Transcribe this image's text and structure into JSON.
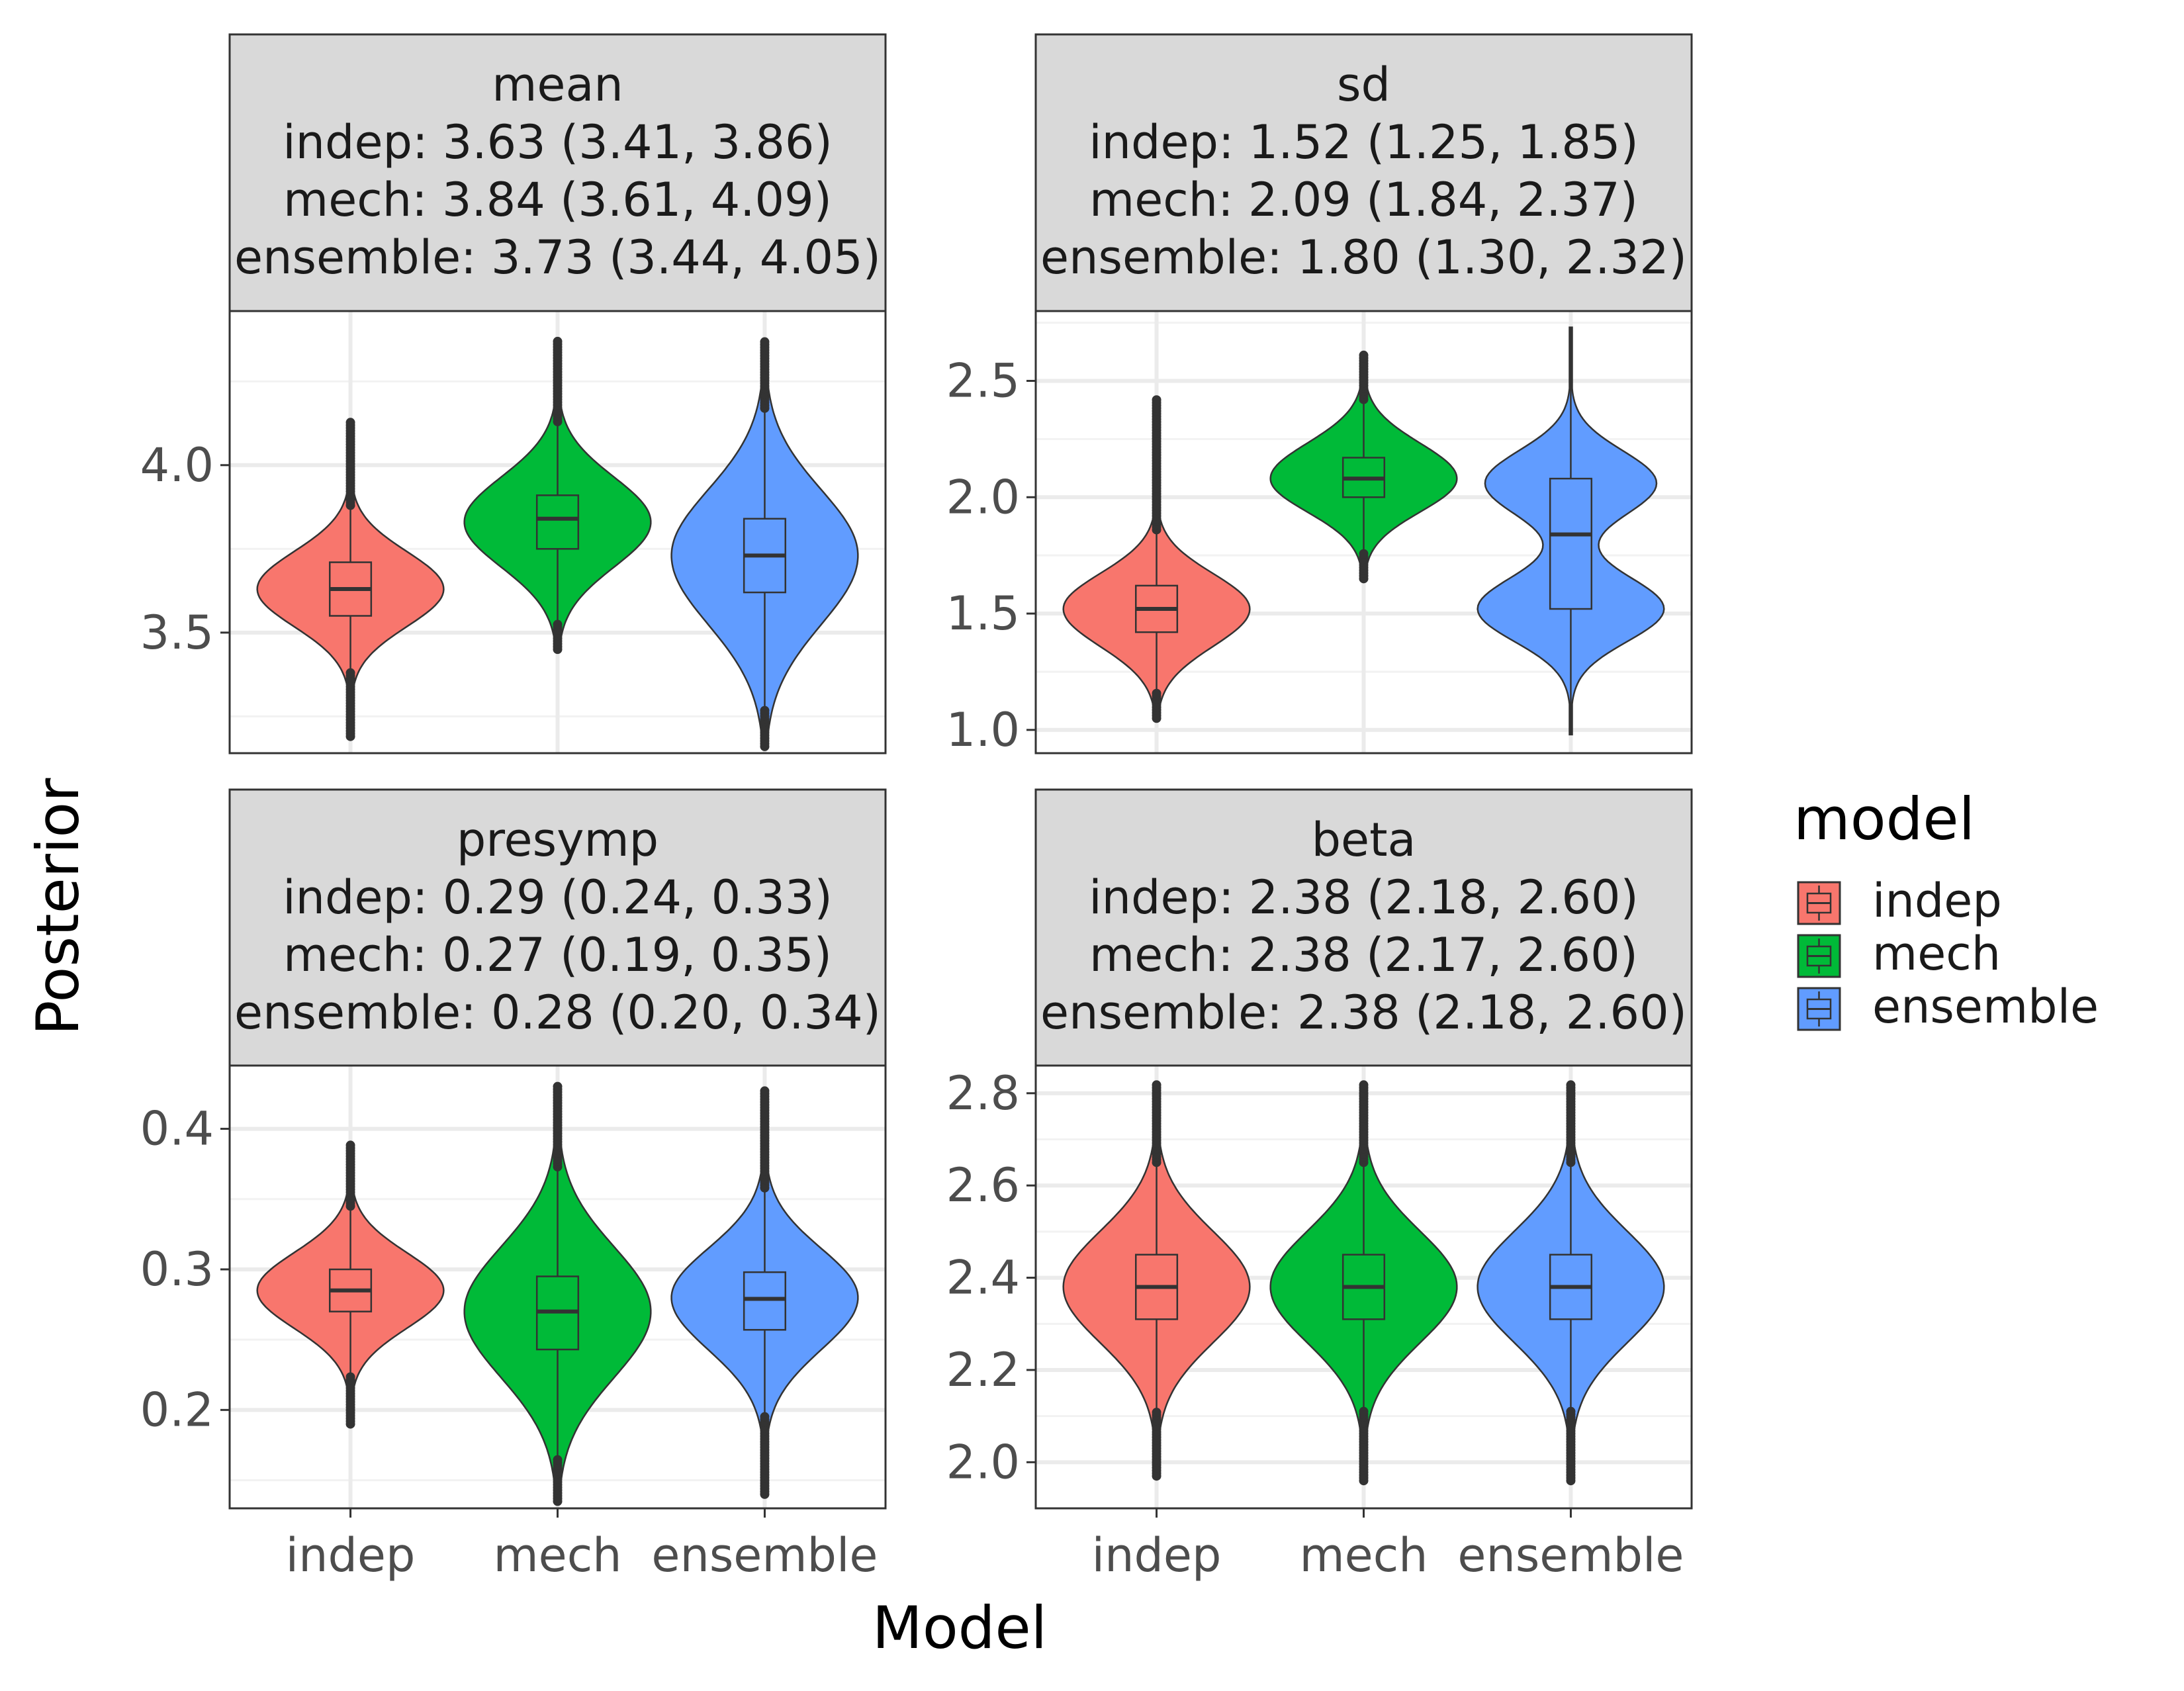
{
  "colors": {
    "indep": "#F8766D",
    "mech": "#00BA38",
    "ensemble": "#619CFF",
    "strip_fill": "#D9D9D9",
    "strip_border": "#333333",
    "panel_border": "#333333",
    "grid_major": "#EBEBEB",
    "grid_minor": "#F2F2F2",
    "axis_text": "#4D4D4D",
    "title_text": "#000000",
    "strip_text": "#1A1A1A"
  },
  "chart_data": {
    "type": "violin",
    "xlabel": "Model",
    "ylabel": "Posterior",
    "categories": [
      "indep",
      "mech",
      "ensemble"
    ],
    "legend": {
      "title": "model",
      "position": "right",
      "entries": [
        {
          "key": "indep",
          "label": "indep"
        },
        {
          "key": "mech",
          "label": "mech"
        },
        {
          "key": "ensemble",
          "label": "ensemble"
        }
      ]
    },
    "grid": true,
    "panels": [
      {
        "id": "mean",
        "strip": [
          "mean",
          "indep: 3.63 (3.41, 3.86)",
          "mech: 3.84 (3.61, 4.09)",
          "ensemble: 3.73 (3.44, 4.05)"
        ],
        "ylim": [
          3.14,
          4.46
        ],
        "yticks": [
          3.5,
          4.0
        ],
        "ytick_labels": [
          "3.5",
          "4.0"
        ],
        "minor_ticks": [
          3.25,
          3.75,
          4.25
        ],
        "series": [
          {
            "name": "indep",
            "median": 3.63,
            "q1": 3.55,
            "q3": 3.71,
            "whisker_low": 3.38,
            "whisker_high": 3.88,
            "min": 3.19,
            "max": 4.13,
            "shape": "unimodal",
            "max_half_width": 0.45,
            "mode": 3.63
          },
          {
            "name": "mech",
            "median": 3.84,
            "q1": 3.75,
            "q3": 3.91,
            "whisker_low": 3.53,
            "whisker_high": 4.13,
            "min": 3.45,
            "max": 4.37,
            "shape": "unimodal",
            "max_half_width": 0.45,
            "mode": 3.83
          },
          {
            "name": "ensemble",
            "median": 3.73,
            "q1": 3.62,
            "q3": 3.84,
            "whisker_low": 3.27,
            "whisker_high": 4.17,
            "min": 3.16,
            "max": 4.37,
            "shape": "unimodal",
            "max_half_width": 0.45,
            "mode": 3.73
          }
        ]
      },
      {
        "id": "sd",
        "strip": [
          "sd",
          "indep: 1.52 (1.25, 1.85)",
          "mech: 2.09 (1.84, 2.37)",
          "ensemble: 1.80 (1.30, 2.32)"
        ],
        "ylim": [
          0.9,
          2.8
        ],
        "yticks": [
          1.0,
          1.5,
          2.0,
          2.5
        ],
        "ytick_labels": [
          "1.0",
          "1.5",
          "2.0",
          "2.5"
        ],
        "minor_ticks": [
          1.25,
          1.75,
          2.25,
          2.75
        ],
        "series": [
          {
            "name": "indep",
            "median": 1.52,
            "q1": 1.42,
            "q3": 1.62,
            "whisker_low": 1.16,
            "whisker_high": 1.86,
            "min": 1.05,
            "max": 2.42,
            "shape": "unimodal",
            "max_half_width": 0.45,
            "mode": 1.52
          },
          {
            "name": "mech",
            "median": 2.08,
            "q1": 2.0,
            "q3": 2.17,
            "whisker_low": 1.76,
            "whisker_high": 2.42,
            "min": 1.65,
            "max": 2.61,
            "shape": "unimodal",
            "max_half_width": 0.45,
            "mode": 2.08
          },
          {
            "name": "ensemble",
            "median": 1.84,
            "q1": 1.52,
            "q3": 2.08,
            "whisker_low": 0.98,
            "whisker_high": 2.73,
            "min": 0.98,
            "max": 2.73,
            "shape": "bimodal",
            "max_half_width": 0.45,
            "modes": [
              1.52,
              2.06
            ]
          }
        ]
      },
      {
        "id": "presymp",
        "strip": [
          "presymp",
          "indep: 0.29 (0.24, 0.33)",
          "mech: 0.27 (0.19, 0.35)",
          "ensemble: 0.28 (0.20, 0.34)"
        ],
        "ylim": [
          0.13,
          0.445
        ],
        "yticks": [
          0.2,
          0.3,
          0.4
        ],
        "ytick_labels": [
          "0.2",
          "0.3",
          "0.4"
        ],
        "minor_ticks": [
          0.15,
          0.25,
          0.35
        ],
        "series": [
          {
            "name": "indep",
            "median": 0.285,
            "q1": 0.27,
            "q3": 0.3,
            "whisker_low": 0.225,
            "whisker_high": 0.345,
            "min": 0.19,
            "max": 0.39,
            "shape": "unimodal",
            "max_half_width": 0.45,
            "mode": 0.285
          },
          {
            "name": "mech",
            "median": 0.27,
            "q1": 0.243,
            "q3": 0.295,
            "whisker_low": 0.165,
            "whisker_high": 0.373,
            "min": 0.135,
            "max": 0.432,
            "shape": "unimodal",
            "max_half_width": 0.45,
            "mode": 0.27
          },
          {
            "name": "ensemble",
            "median": 0.279,
            "q1": 0.257,
            "q3": 0.298,
            "whisker_low": 0.197,
            "whisker_high": 0.358,
            "min": 0.14,
            "max": 0.427,
            "shape": "unimodal",
            "max_half_width": 0.45,
            "mode": 0.28
          }
        ]
      },
      {
        "id": "beta",
        "strip": [
          "beta",
          "indep: 2.38 (2.18, 2.60)",
          "mech: 2.38 (2.17, 2.60)",
          "ensemble: 2.38 (2.18, 2.60)"
        ],
        "ylim": [
          1.9,
          2.86
        ],
        "yticks": [
          2.0,
          2.2,
          2.4,
          2.6,
          2.8
        ],
        "ytick_labels": [
          "2.0",
          "2.2",
          "2.4",
          "2.6",
          "2.8"
        ],
        "minor_ticks": [
          2.1,
          2.3,
          2.5,
          2.7
        ],
        "series": [
          {
            "name": "indep",
            "median": 2.38,
            "q1": 2.31,
            "q3": 2.45,
            "whisker_low": 2.11,
            "whisker_high": 2.65,
            "min": 1.97,
            "max": 2.82,
            "shape": "unimodal",
            "max_half_width": 0.45,
            "mode": 2.38
          },
          {
            "name": "mech",
            "median": 2.38,
            "q1": 2.31,
            "q3": 2.45,
            "whisker_low": 2.11,
            "whisker_high": 2.65,
            "min": 1.96,
            "max": 2.82,
            "shape": "unimodal",
            "max_half_width": 0.45,
            "mode": 2.38
          },
          {
            "name": "ensemble",
            "median": 2.38,
            "q1": 2.31,
            "q3": 2.45,
            "whisker_low": 2.11,
            "whisker_high": 2.65,
            "min": 1.96,
            "max": 2.82,
            "shape": "unimodal",
            "max_half_width": 0.45,
            "mode": 2.38
          }
        ]
      }
    ]
  }
}
